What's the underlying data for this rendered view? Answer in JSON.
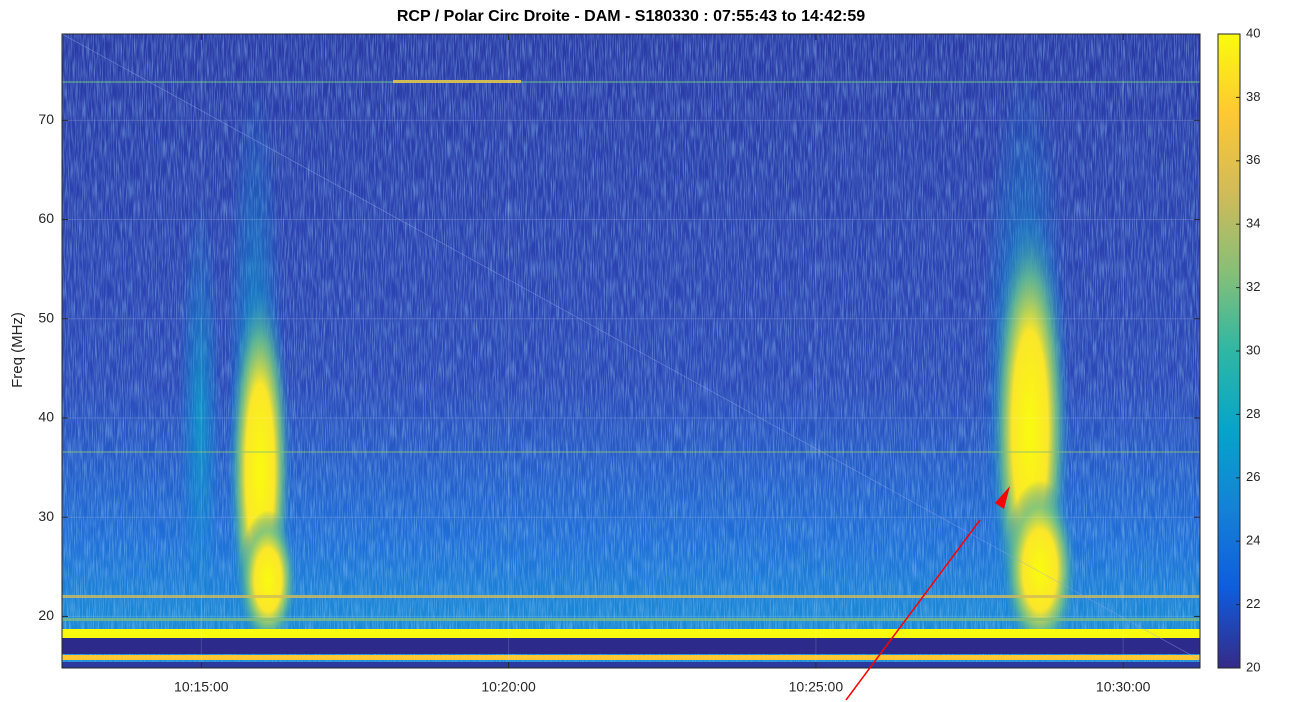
{
  "chart_data": {
    "type": "spectrogram",
    "title": "RCP / Polar Circ Droite - DAM - S180330 : 07:55:43 to 14:42:59",
    "y_label": "Freq (MHz)",
    "xlim": [
      "10:12:44",
      "10:31:15"
    ],
    "xticks": [
      "10:15:00",
      "10:20:00",
      "10:25:00",
      "10:30:00"
    ],
    "ylim": [
      14.8,
      78.7
    ],
    "yticks": [
      20,
      30,
      40,
      50,
      60,
      70
    ],
    "clim": [
      20,
      40
    ],
    "cticks": [
      20,
      22,
      24,
      26,
      28,
      30,
      32,
      34,
      36,
      38,
      40
    ],
    "colormap": [
      "#352a87",
      "#0f5cdd",
      "#1481d6",
      "#06a4ca",
      "#2eb7a4",
      "#87bf77",
      "#d1bb59",
      "#fec832",
      "#f9fb0e"
    ],
    "grid": true
  }
}
